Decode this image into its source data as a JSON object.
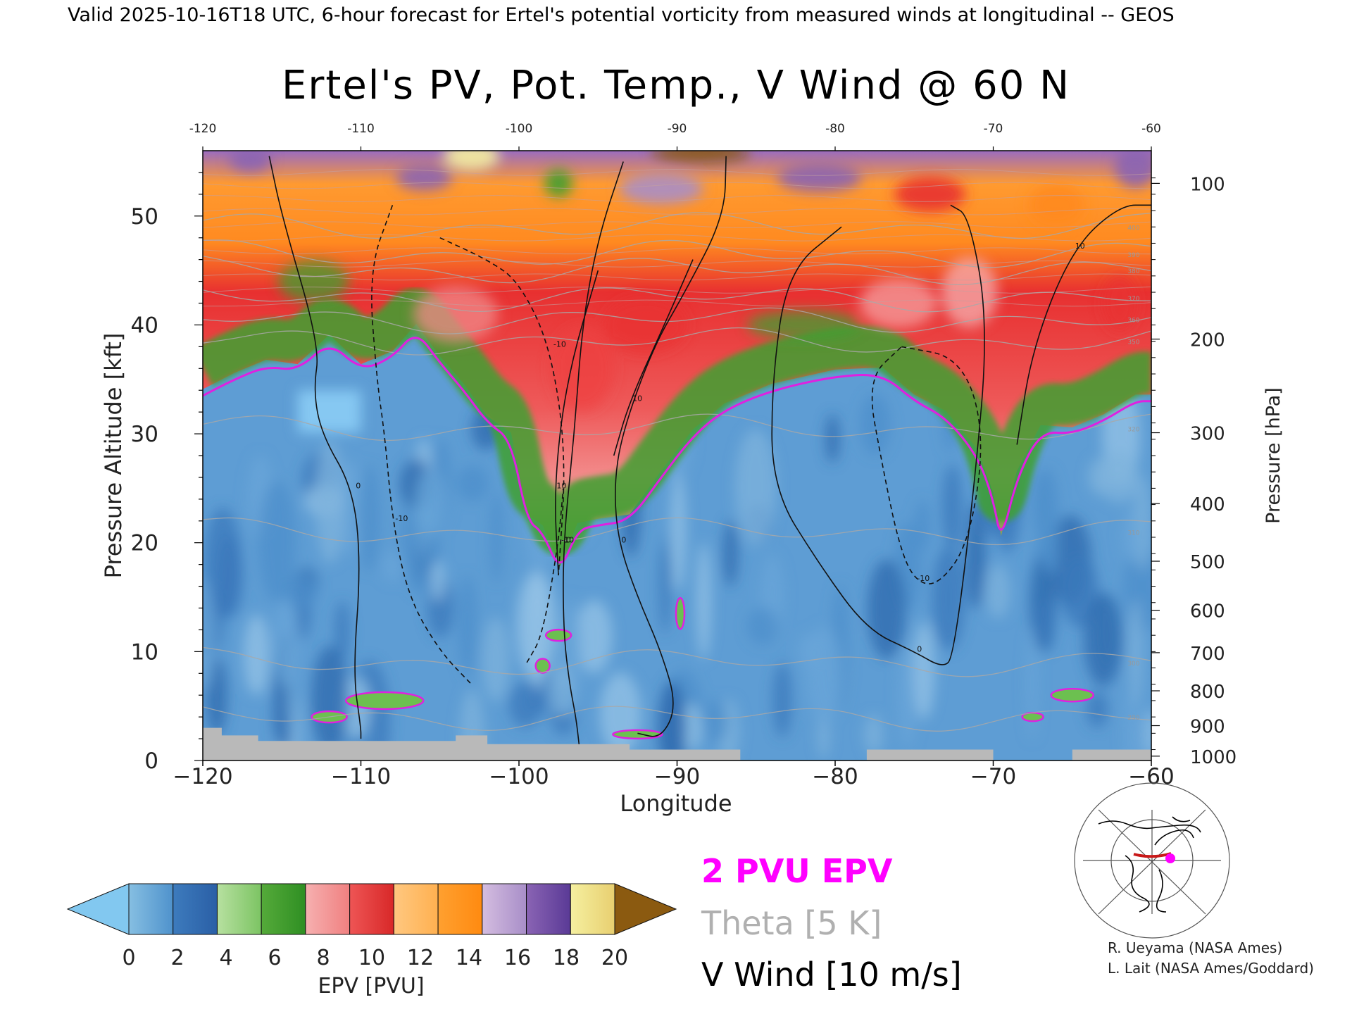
{
  "header": {
    "valid_text": "Valid 2025-10-16T18 UTC, 6-hour forecast for Ertel's potential vorticity from measured winds at longitudinal -- GEOS"
  },
  "chart_data": {
    "type": "heatmap",
    "title": "Ertel's PV, Pot. Temp., V Wind @ 60 N",
    "xlabel": "Longitude",
    "ylabel_left": "Pressure Altitude [kft]",
    "ylabel_right": "Pressure [hPa]",
    "xlim": [
      -120,
      -60
    ],
    "ylim": [
      0,
      56
    ],
    "x_ticks": [
      -120,
      -110,
      -100,
      -90,
      -80,
      -70,
      -60
    ],
    "x_tick_labels": [
      "−120",
      "−110",
      "−100",
      "−90",
      "−80",
      "−70",
      "−60"
    ],
    "x_top_tick_labels": [
      "-120",
      "-110",
      "-100",
      "-90",
      "-80",
      "-70",
      "-60"
    ],
    "y_ticks": [
      0,
      10,
      20,
      30,
      40,
      50
    ],
    "y_tick_labels": [
      "0",
      "10",
      "20",
      "30",
      "40",
      "50"
    ],
    "pressure_ticks": [
      {
        "hpa": 100,
        "alt": 53.0
      },
      {
        "hpa": 200,
        "alt": 38.7
      },
      {
        "hpa": 300,
        "alt": 30.1
      },
      {
        "hpa": 400,
        "alt": 23.6
      },
      {
        "hpa": 500,
        "alt": 18.3
      },
      {
        "hpa": 600,
        "alt": 13.8
      },
      {
        "hpa": 700,
        "alt": 9.9
      },
      {
        "hpa": 800,
        "alt": 6.4
      },
      {
        "hpa": 900,
        "alt": 3.2
      },
      {
        "hpa": 1000,
        "alt": 0.4
      }
    ],
    "tropopause_2pvu": [
      [
        -120,
        33.5
      ],
      [
        -118,
        35
      ],
      [
        -116,
        36.2
      ],
      [
        -114,
        35.8
      ],
      [
        -112,
        38.5
      ],
      [
        -110,
        35.8
      ],
      [
        -108,
        37
      ],
      [
        -106.5,
        39.5
      ],
      [
        -105,
        36.5
      ],
      [
        -103.5,
        34
      ],
      [
        -102,
        31
      ],
      [
        -100.5,
        29.5
      ],
      [
        -99.5,
        22
      ],
      [
        -98.5,
        21
      ],
      [
        -97.4,
        17.2
      ],
      [
        -96.3,
        21.2
      ],
      [
        -95,
        21.6
      ],
      [
        -93,
        22
      ],
      [
        -91,
        26
      ],
      [
        -89,
        29.8
      ],
      [
        -87,
        32.2
      ],
      [
        -84,
        34
      ],
      [
        -80,
        35.3
      ],
      [
        -77,
        35.5
      ],
      [
        -75,
        33
      ],
      [
        -73,
        31.5
      ],
      [
        -71,
        28
      ],
      [
        -70,
        24
      ],
      [
        -69.5,
        20
      ],
      [
        -68.5,
        26
      ],
      [
        -67,
        30.2
      ],
      [
        -65,
        30
      ],
      [
        -63,
        31.2
      ],
      [
        -61,
        33
      ],
      [
        -60,
        33
      ]
    ],
    "v_wind_contours": [
      {
        "label": "0",
        "style": "solid",
        "points": [
          [
            -115.8,
            55.5
          ],
          [
            -115,
            50
          ],
          [
            -112.6,
            38
          ],
          [
            -113,
            34
          ],
          [
            -112.5,
            30
          ],
          [
            -110.5,
            25
          ],
          [
            -110,
            18
          ],
          [
            -110.5,
            8
          ],
          [
            -110,
            3
          ],
          [
            -110,
            2
          ]
        ]
      },
      {
        "label": "0",
        "style": "solid",
        "points": [
          [
            -93.4,
            55
          ],
          [
            -95,
            48
          ],
          [
            -96,
            40
          ],
          [
            -96.5,
            30
          ],
          [
            -97.2,
            20
          ],
          [
            -97.2,
            12
          ],
          [
            -96.8,
            7
          ],
          [
            -96.4,
            4
          ],
          [
            -96.2,
            1.5
          ]
        ]
      },
      {
        "label": "0",
        "style": "solid",
        "points": [
          [
            -86.9,
            55.5
          ],
          [
            -87,
            50
          ],
          [
            -89.5,
            43
          ],
          [
            -91.5,
            38
          ],
          [
            -93.5,
            30
          ],
          [
            -94,
            25
          ],
          [
            -93.7,
            20
          ],
          [
            -92.5,
            15
          ],
          [
            -91,
            10
          ],
          [
            -90,
            5
          ],
          [
            -91,
            2
          ],
          [
            -92.5,
            2.5
          ]
        ]
      },
      {
        "label": "0",
        "style": "solid",
        "points": [
          [
            -79.6,
            49
          ],
          [
            -83,
            45
          ],
          [
            -84,
            35
          ],
          [
            -84,
            25
          ],
          [
            -81,
            18
          ],
          [
            -78,
            12
          ],
          [
            -75,
            10
          ],
          [
            -73.2,
            8.5
          ],
          [
            -72.5,
            9.5
          ],
          [
            -71.2,
            25
          ],
          [
            -70.3,
            40
          ],
          [
            -71.5,
            50
          ],
          [
            -72.7,
            51
          ]
        ]
      },
      {
        "label": "10",
        "style": "solid",
        "points": [
          [
            -95,
            45
          ],
          [
            -97,
            35
          ],
          [
            -97.8,
            25
          ],
          [
            -97.5,
            17
          ]
        ]
      },
      {
        "label": "10",
        "style": "solid",
        "points": [
          [
            -89,
            46
          ],
          [
            -90.8,
            40
          ],
          [
            -93,
            33
          ],
          [
            -94,
            28
          ]
        ]
      },
      {
        "label": "10",
        "style": "solid",
        "points": [
          [
            -68.5,
            29
          ],
          [
            -67.5,
            38
          ],
          [
            -65,
            47
          ],
          [
            -62,
            51
          ],
          [
            -60,
            51
          ]
        ]
      },
      {
        "label": "-10",
        "style": "dashed",
        "points": [
          [
            -108,
            51
          ],
          [
            -109.5,
            45
          ],
          [
            -109,
            35
          ],
          [
            -108.5,
            30
          ],
          [
            -108,
            22
          ],
          [
            -107,
            15
          ],
          [
            -105,
            10
          ],
          [
            -103,
            7
          ]
        ]
      },
      {
        "label": "-10",
        "style": "dashed",
        "points": [
          [
            -105,
            48
          ],
          [
            -102,
            46
          ],
          [
            -100,
            44
          ],
          [
            -98,
            38
          ],
          [
            -97,
            28
          ],
          [
            -97.5,
            17
          ]
        ]
      },
      {
        "label": "-10",
        "style": "dashed",
        "points": [
          [
            -99.5,
            9
          ],
          [
            -98.5,
            11.5
          ],
          [
            -97.5,
            20
          ],
          [
            -97.2,
            25
          ]
        ]
      },
      {
        "label": "-10",
        "style": "dashed",
        "points": [
          [
            -75.8,
            38
          ],
          [
            -72,
            37
          ],
          [
            -70.5,
            30
          ],
          [
            -71.5,
            20
          ],
          [
            -73.5,
            16
          ],
          [
            -75,
            16.5
          ],
          [
            -76,
            20
          ],
          [
            -77,
            27
          ],
          [
            -78,
            35
          ],
          [
            -75.8,
            38
          ]
        ]
      }
    ],
    "theta_contours": [
      {
        "label": "400",
        "alt": 49
      },
      {
        "label": "390",
        "alt": 46.5
      },
      {
        "label": "380",
        "alt": 45
      },
      {
        "label": "370",
        "alt": 42.5
      },
      {
        "label": "360",
        "alt": 40.5
      },
      {
        "label": "350",
        "alt": 38.5
      },
      {
        "label": "320",
        "alt": 30.5
      },
      {
        "label": "310",
        "alt": 21
      },
      {
        "label": "300",
        "alt": 9
      },
      {
        "label": "290",
        "alt": 4
      }
    ],
    "colorbar": {
      "title": "EPV [PVU]",
      "tick_labels": [
        "0",
        "2",
        "4",
        "6",
        "8",
        "10",
        "12",
        "14",
        "16",
        "18",
        "20"
      ],
      "under_color": "#82c8f0",
      "over_color": "#8b5a10",
      "bands": [
        [
          "#86bfe2",
          "#4f92cc"
        ],
        [
          "#3d7bbd",
          "#2a5fa6"
        ],
        [
          "#b7e0a0",
          "#7cc463"
        ],
        [
          "#55aa3a",
          "#2f8f23"
        ],
        [
          "#f6b0b0",
          "#f08080"
        ],
        [
          "#ee5555",
          "#d82828"
        ],
        [
          "#ffc880",
          "#ffb050"
        ],
        [
          "#ffa030",
          "#ff8a10"
        ],
        [
          "#d4bde0",
          "#a88ec8"
        ],
        [
          "#8a64b4",
          "#5a3a96"
        ],
        [
          "#f5f0a0",
          "#e8cf70"
        ]
      ]
    }
  },
  "legend": {
    "pvu": "2 PVU EPV",
    "pvu_color": "#ff00ff",
    "theta": "Theta [5 K]",
    "theta_color": "#b0b0b0",
    "vwind": "V Wind [10 m/s]",
    "vwind_color": "#000000"
  },
  "credits": {
    "line1": "R. Ueyama (NASA Ames)",
    "line2": "L. Lait (NASA Ames/Goddard)"
  }
}
